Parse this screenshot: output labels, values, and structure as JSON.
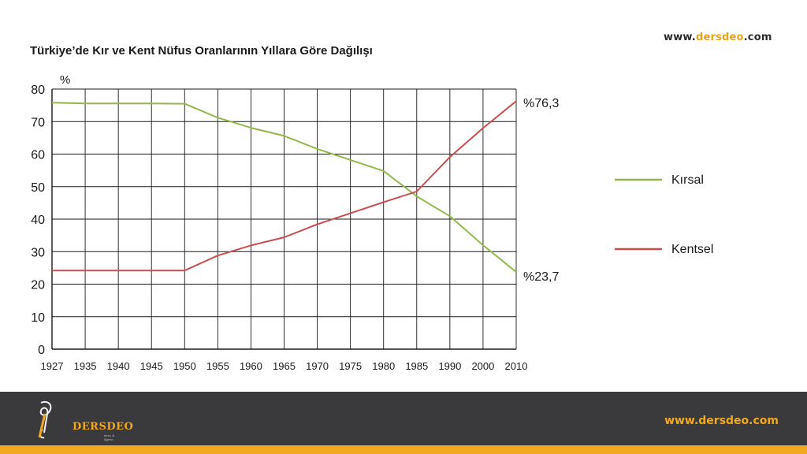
{
  "watermark": {
    "prefix": "www.",
    "brand": "dersdeo",
    "suffix": ".com"
  },
  "footer": {
    "url": "www.dersdeo.com",
    "logo_text": "DERSDEO",
    "logo_sub": "ders & öğren"
  },
  "colors": {
    "rural": "#93b84a",
    "urban": "#c94f4f",
    "grid": "#1a1a1a",
    "footer_bg": "#3a3a3c",
    "accent": "#f2a91f"
  },
  "chart_data": {
    "type": "line",
    "title": "Türkiye’de Kır ve Kent Nüfus Oranlarının Yıllara Göre Dağılışı",
    "ylabel": "%",
    "xlabel": "",
    "ylim": [
      0,
      80
    ],
    "yticks": [
      0,
      10,
      20,
      30,
      40,
      50,
      60,
      70,
      80
    ],
    "categories": [
      "1927",
      "1935",
      "1940",
      "1945",
      "1950",
      "1955",
      "1960",
      "1965",
      "1970",
      "1975",
      "1980",
      "1985",
      "1990",
      "2000",
      "2010"
    ],
    "grid": true,
    "legend_position": "right",
    "series": [
      {
        "name": "Kırsal",
        "color": "#93b84a",
        "values": [
          75.8,
          75.6,
          75.6,
          75.6,
          75.5,
          71.2,
          68.1,
          65.6,
          61.6,
          58.2,
          54.8,
          47.0,
          40.9,
          32.0,
          23.7
        ]
      },
      {
        "name": "Kentsel",
        "color": "#c94f4f",
        "values": [
          24.2,
          24.2,
          24.2,
          24.2,
          24.2,
          28.8,
          31.9,
          34.4,
          38.4,
          41.8,
          45.2,
          48.5,
          59.1,
          68.0,
          76.3
        ]
      }
    ],
    "annotations": [
      "%76,3",
      "%23,7"
    ]
  }
}
